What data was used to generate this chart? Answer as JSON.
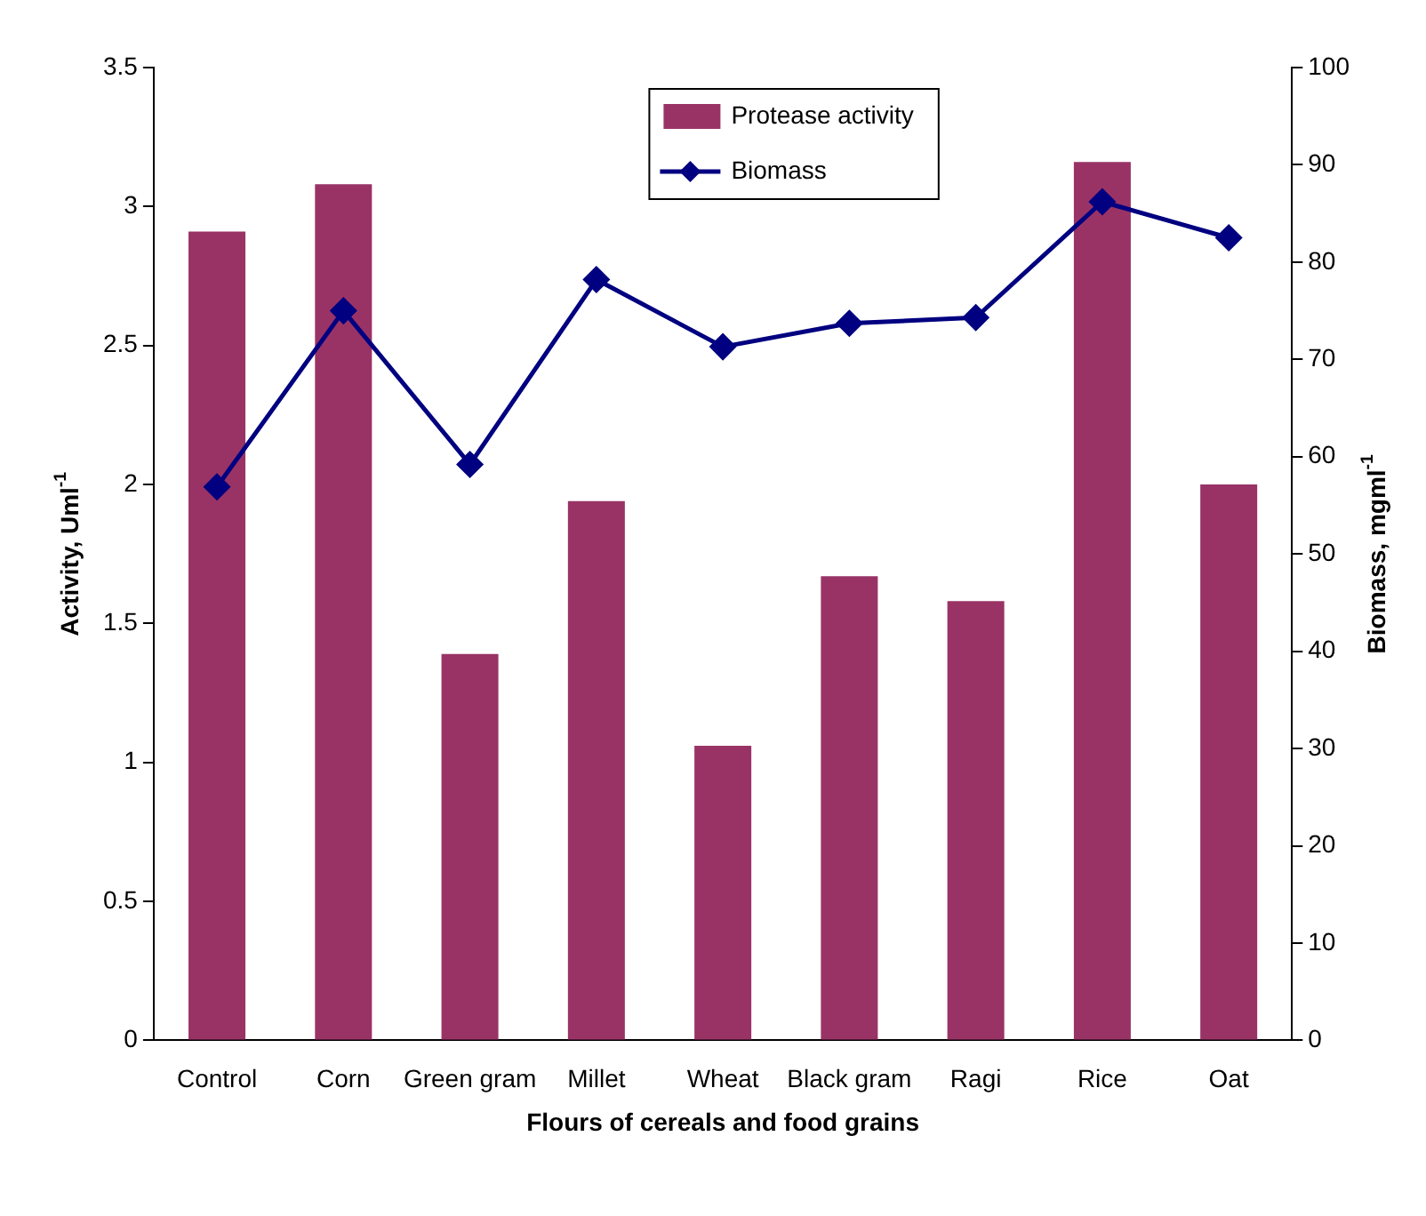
{
  "chart_data": {
    "type": "bar",
    "xlabel": "Flours of cereals and food grains",
    "ylabel": "Activity, Uml$^{-1}$",
    "y2label": "Biomass, mgml$^{-1}$",
    "categories": [
      "Control",
      "Corn",
      "Green gram",
      "Millet",
      "Wheat",
      "Black gram",
      "Ragi",
      "Rice",
      "Oat"
    ],
    "series": [
      {
        "name": "Protease activity",
        "color": "#993366",
        "values": [
          2.91,
          3.08,
          1.39,
          1.94,
          1.06,
          1.67,
          1.58,
          3.16,
          2.0
        ]
      },
      {
        "name": "Biomass",
        "type": "line",
        "axis": "y2",
        "color": "#000080",
        "marker": "diamond",
        "values": [
          56.9,
          75.0,
          59.2,
          78.2,
          71.3,
          73.7,
          74.3,
          86.2,
          82.5
        ]
      }
    ],
    "ylim": [
      0,
      3.5
    ],
    "yticks": [
      0,
      0.5,
      1,
      1.5,
      2,
      2.5,
      3,
      3.5
    ],
    "y2lim": [
      0,
      100
    ],
    "y2ticks": [
      0,
      10,
      20,
      30,
      40,
      50,
      60,
      70,
      80,
      90,
      100
    ],
    "grid": false,
    "legend": "top"
  }
}
